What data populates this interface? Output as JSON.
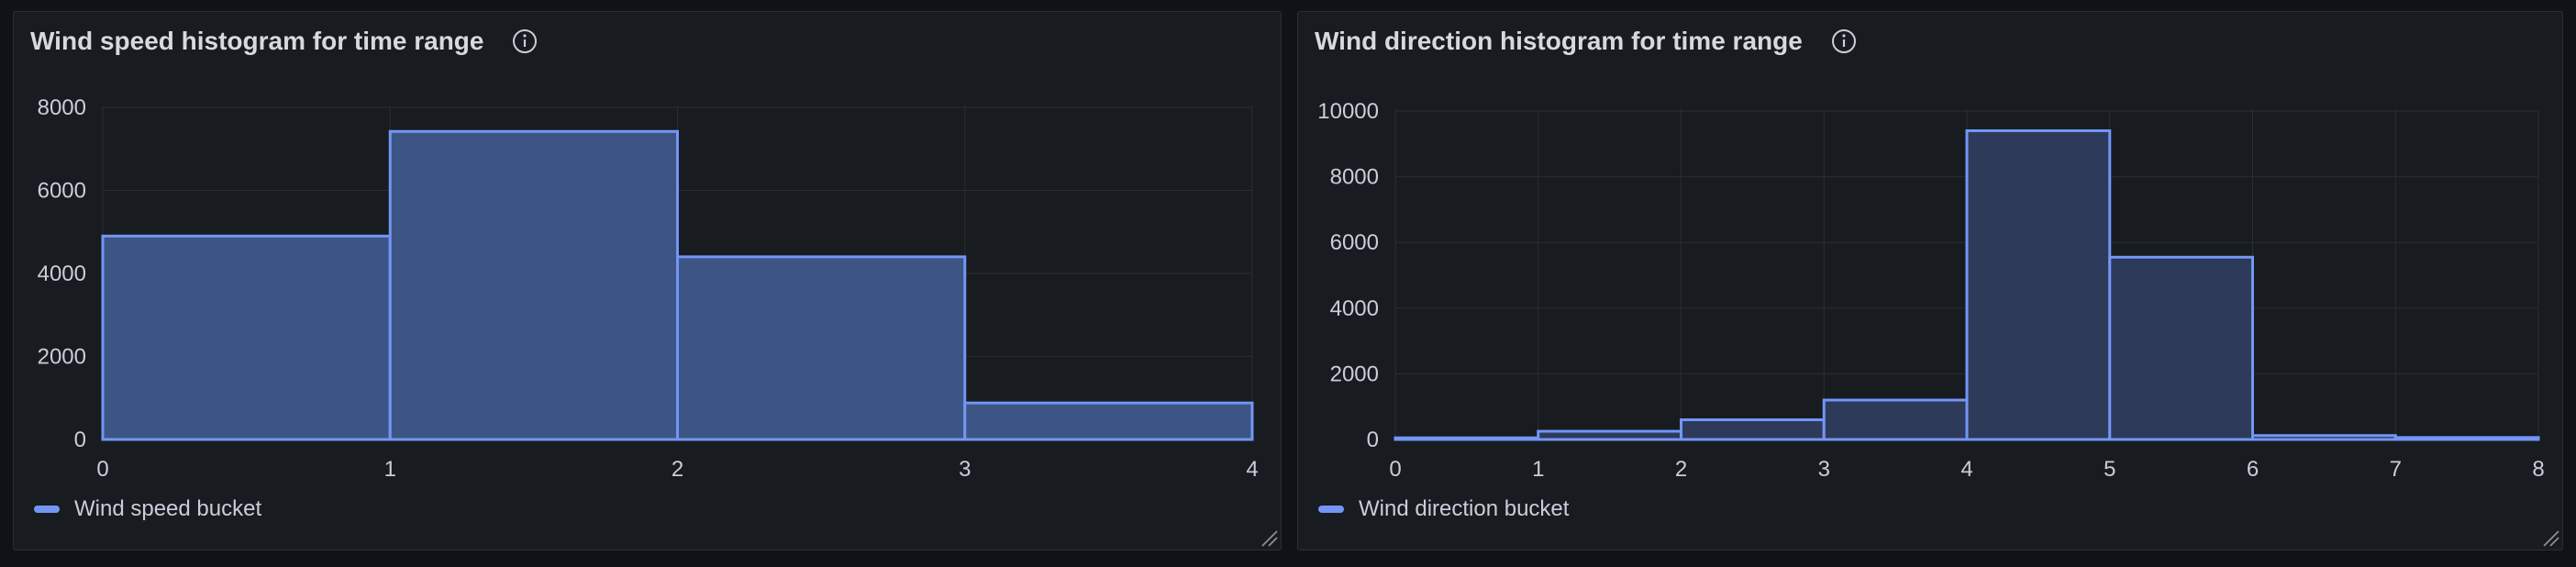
{
  "panels": [
    {
      "title": "Wind speed histogram for time range",
      "legend_label": "Wind speed bucket"
    },
    {
      "title": "Wind direction histogram for time range",
      "legend_label": "Wind direction bucket"
    }
  ],
  "icons": {
    "info": "info-circle-icon",
    "resize": "resize-handle-icon"
  },
  "colors": {
    "series_line": "#7396f5",
    "series_fill_left": "#3d5585",
    "series_fill_right": "#2e3a5a",
    "grid": "#2a2d35",
    "background": "#181b1f"
  },
  "chart_data": [
    {
      "type": "bar",
      "title": "Wind speed histogram for time range",
      "series": [
        {
          "name": "Wind speed bucket",
          "bins": [
            {
              "x0": 0,
              "x1": 1,
              "value": 4900
            },
            {
              "x0": 1,
              "x1": 2,
              "value": 7420
            },
            {
              "x0": 2,
              "x1": 3,
              "value": 4400
            },
            {
              "x0": 3,
              "x1": 4,
              "value": 880
            }
          ]
        }
      ],
      "xlim": [
        0,
        4
      ],
      "ylim": [
        0,
        8000
      ],
      "xticks": [
        0,
        1,
        2,
        3,
        4
      ],
      "yticks": [
        0,
        2000,
        4000,
        6000,
        8000
      ],
      "legend": "bottom-left",
      "grid": true
    },
    {
      "type": "bar",
      "title": "Wind direction histogram for time range",
      "series": [
        {
          "name": "Wind direction bucket",
          "bins": [
            {
              "x0": 0,
              "x1": 1,
              "value": 50
            },
            {
              "x0": 1,
              "x1": 2,
              "value": 250
            },
            {
              "x0": 2,
              "x1": 3,
              "value": 600
            },
            {
              "x0": 3,
              "x1": 4,
              "value": 1200
            },
            {
              "x0": 4,
              "x1": 5,
              "value": 9400
            },
            {
              "x0": 5,
              "x1": 6,
              "value": 5550
            },
            {
              "x0": 6,
              "x1": 7,
              "value": 120
            },
            {
              "x0": 7,
              "x1": 8,
              "value": 60
            }
          ]
        }
      ],
      "xlim": [
        0,
        8
      ],
      "ylim": [
        0,
        10000
      ],
      "xticks": [
        0,
        1,
        2,
        3,
        4,
        5,
        6,
        7,
        8
      ],
      "yticks": [
        0,
        2000,
        4000,
        6000,
        8000,
        10000
      ],
      "legend": "bottom-left",
      "grid": true
    }
  ]
}
